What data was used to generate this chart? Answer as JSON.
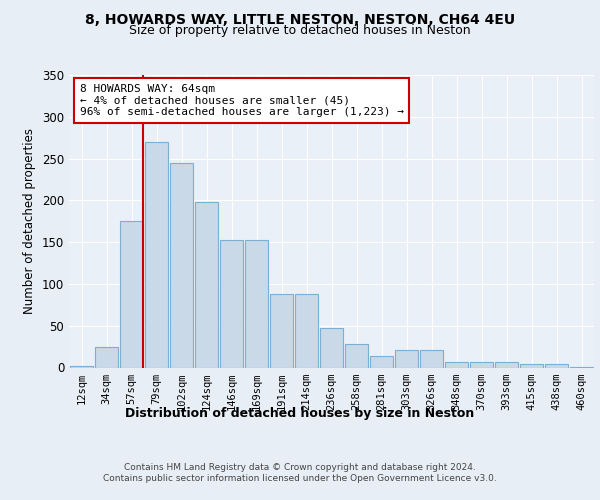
{
  "title1": "8, HOWARDS WAY, LITTLE NESTON, NESTON, CH64 4EU",
  "title2": "Size of property relative to detached houses in Neston",
  "xlabel": "Distribution of detached houses by size in Neston",
  "ylabel": "Number of detached properties",
  "categories": [
    "12sqm",
    "34sqm",
    "57sqm",
    "79sqm",
    "102sqm",
    "124sqm",
    "146sqm",
    "169sqm",
    "191sqm",
    "214sqm",
    "236sqm",
    "258sqm",
    "281sqm",
    "303sqm",
    "326sqm",
    "348sqm",
    "370sqm",
    "393sqm",
    "415sqm",
    "438sqm",
    "460sqm"
  ],
  "values": [
    2,
    25,
    175,
    270,
    245,
    198,
    153,
    153,
    88,
    88,
    47,
    28,
    14,
    21,
    21,
    7,
    7,
    7,
    4,
    4,
    1
  ],
  "bar_color": "#c9d9e8",
  "bar_edge_color": "#7bafd4",
  "vline_x_index": 2,
  "vline_color": "#cc0000",
  "annotation_text": "8 HOWARDS WAY: 64sqm\n← 4% of detached houses are smaller (45)\n96% of semi-detached houses are larger (1,223) →",
  "annotation_box_color": "#ffffff",
  "annotation_box_edge": "#cc0000",
  "ylim": [
    0,
    350
  ],
  "yticks": [
    0,
    50,
    100,
    150,
    200,
    250,
    300,
    350
  ],
  "footnote1": "Contains HM Land Registry data © Crown copyright and database right 2024.",
  "footnote2": "Contains public sector information licensed under the Open Government Licence v3.0.",
  "bg_color": "#e8eef5",
  "plot_bg_color": "#eaf0f8"
}
